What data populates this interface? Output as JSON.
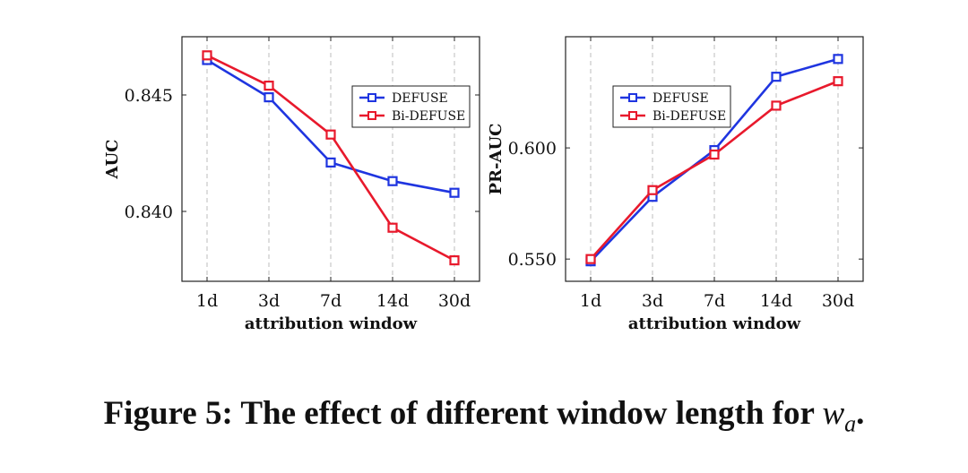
{
  "colors": {
    "defuse": "#1f35e0",
    "bidefuse": "#e8192c",
    "grid": "#bdbdbd",
    "axis": "#222222"
  },
  "caption": {
    "prefix": "Figure 5: The effect of different window length for ",
    "math": "w",
    "math_sub": "a",
    "suffix": "."
  },
  "chart_data": [
    {
      "type": "line",
      "categories": [
        "1d",
        "3d",
        "7d",
        "14d",
        "30d"
      ],
      "xlabel": "attribution window",
      "ylabel": "AUC",
      "ylim": [
        0.837,
        0.8475
      ],
      "yticks": [
        0.84,
        0.845
      ],
      "ytick_labels": [
        "0.840",
        "0.845"
      ],
      "grid": "vertical dashed",
      "legend": "top-right",
      "series": [
        {
          "name": "DEFUSE",
          "color": "#1f35e0",
          "values": [
            0.8465,
            0.8449,
            0.8421,
            0.8413,
            0.8408
          ]
        },
        {
          "name": "Bi-DEFUSE",
          "color": "#e8192c",
          "values": [
            0.8467,
            0.8454,
            0.8433,
            0.8393,
            0.8379
          ]
        }
      ]
    },
    {
      "type": "line",
      "categories": [
        "1d",
        "3d",
        "7d",
        "14d",
        "30d"
      ],
      "xlabel": "attribution window",
      "ylabel": "PR-AUC",
      "ylim": [
        0.54,
        0.65
      ],
      "yticks": [
        0.55,
        0.6
      ],
      "ytick_labels": [
        "0.550",
        "0.600"
      ],
      "grid": "vertical dashed",
      "legend": "top-left",
      "series": [
        {
          "name": "DEFUSE",
          "color": "#1f35e0",
          "values": [
            0.549,
            0.578,
            0.599,
            0.632,
            0.64
          ]
        },
        {
          "name": "Bi-DEFUSE",
          "color": "#e8192c",
          "values": [
            0.55,
            0.581,
            0.597,
            0.619,
            0.63
          ]
        }
      ]
    }
  ]
}
